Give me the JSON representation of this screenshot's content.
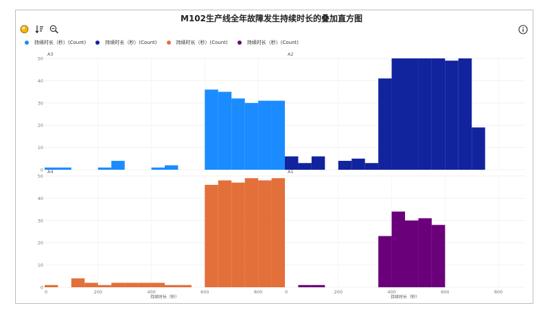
{
  "title": "M102生产线全年故障发生持续时长的叠加直方图",
  "toolbar": {
    "tools": [
      {
        "name": "hand-icon",
        "glyph": "✋"
      },
      {
        "name": "sort-icon",
        "glyph": "↓≡"
      },
      {
        "name": "zoom-out-icon",
        "glyph": "⊖"
      }
    ],
    "info_icon": "info-icon"
  },
  "legend": [
    {
      "label": "持续时长（秒）(Count)",
      "color": "#1a8cff"
    },
    {
      "label": "持续时长（秒）(Count)",
      "color": "#12239e"
    },
    {
      "label": "持续时长（秒）(Count)",
      "color": "#e3703a"
    },
    {
      "label": "持续时长（秒）(Count)",
      "color": "#6b007b"
    }
  ],
  "chart_data": [
    {
      "type": "bar",
      "panel": "A3",
      "color": "#1a8cff",
      "bin_width": 50,
      "xlim": [
        0,
        900
      ],
      "ylim": [
        0,
        50
      ],
      "bins": [
        {
          "x0": 0,
          "value": 1
        },
        {
          "x0": 50,
          "value": 1
        },
        {
          "x0": 200,
          "value": 1
        },
        {
          "x0": 250,
          "value": 4
        },
        {
          "x0": 400,
          "value": 1
        },
        {
          "x0": 450,
          "value": 2
        },
        {
          "x0": 600,
          "value": 36
        },
        {
          "x0": 650,
          "value": 35
        },
        {
          "x0": 700,
          "value": 32
        },
        {
          "x0": 750,
          "value": 30
        },
        {
          "x0": 800,
          "value": 31
        },
        {
          "x0": 850,
          "value": 31
        }
      ]
    },
    {
      "type": "bar",
      "panel": "A2",
      "color": "#12239e",
      "bin_width": 50,
      "xlim": [
        0,
        900
      ],
      "ylim": [
        0,
        50
      ],
      "bins": [
        {
          "x0": 0,
          "value": 6
        },
        {
          "x0": 50,
          "value": 3
        },
        {
          "x0": 100,
          "value": 6
        },
        {
          "x0": 200,
          "value": 4
        },
        {
          "x0": 250,
          "value": 5
        },
        {
          "x0": 300,
          "value": 3
        },
        {
          "x0": 350,
          "value": 41
        },
        {
          "x0": 400,
          "value": 50
        },
        {
          "x0": 450,
          "value": 50
        },
        {
          "x0": 500,
          "value": 50
        },
        {
          "x0": 550,
          "value": 50
        },
        {
          "x0": 600,
          "value": 49
        },
        {
          "x0": 650,
          "value": 50
        },
        {
          "x0": 700,
          "value": 19
        }
      ]
    },
    {
      "type": "bar",
      "panel": "A4",
      "color": "#e3703a",
      "bin_width": 50,
      "xlim": [
        0,
        900
      ],
      "ylim": [
        0,
        50
      ],
      "xlabel": "持续时长（秒）",
      "bins": [
        {
          "x0": 0,
          "value": 1
        },
        {
          "x0": 100,
          "value": 4
        },
        {
          "x0": 150,
          "value": 2
        },
        {
          "x0": 200,
          "value": 1
        },
        {
          "x0": 250,
          "value": 2
        },
        {
          "x0": 300,
          "value": 2
        },
        {
          "x0": 350,
          "value": 2
        },
        {
          "x0": 400,
          "value": 2
        },
        {
          "x0": 450,
          "value": 1
        },
        {
          "x0": 500,
          "value": 1
        },
        {
          "x0": 600,
          "value": 46
        },
        {
          "x0": 650,
          "value": 48
        },
        {
          "x0": 700,
          "value": 47
        },
        {
          "x0": 750,
          "value": 49
        },
        {
          "x0": 800,
          "value": 48
        },
        {
          "x0": 850,
          "value": 49
        }
      ]
    },
    {
      "type": "bar",
      "panel": "A1",
      "color": "#6b007b",
      "bin_width": 50,
      "xlim": [
        0,
        900
      ],
      "ylim": [
        0,
        50
      ],
      "xlabel": "持续时长（秒）",
      "bins": [
        {
          "x0": 50,
          "value": 1
        },
        {
          "x0": 100,
          "value": 1
        },
        {
          "x0": 350,
          "value": 23
        },
        {
          "x0": 400,
          "value": 34
        },
        {
          "x0": 450,
          "value": 30
        },
        {
          "x0": 500,
          "value": 31
        },
        {
          "x0": 550,
          "value": 28
        }
      ]
    }
  ],
  "y_ticks": [
    0,
    10,
    20,
    30,
    40,
    50
  ],
  "x_ticks_left": [
    "0",
    "200",
    "400",
    "600",
    "800"
  ],
  "x_ticks_right": [
    "0",
    "200",
    "400",
    "600",
    "800"
  ]
}
